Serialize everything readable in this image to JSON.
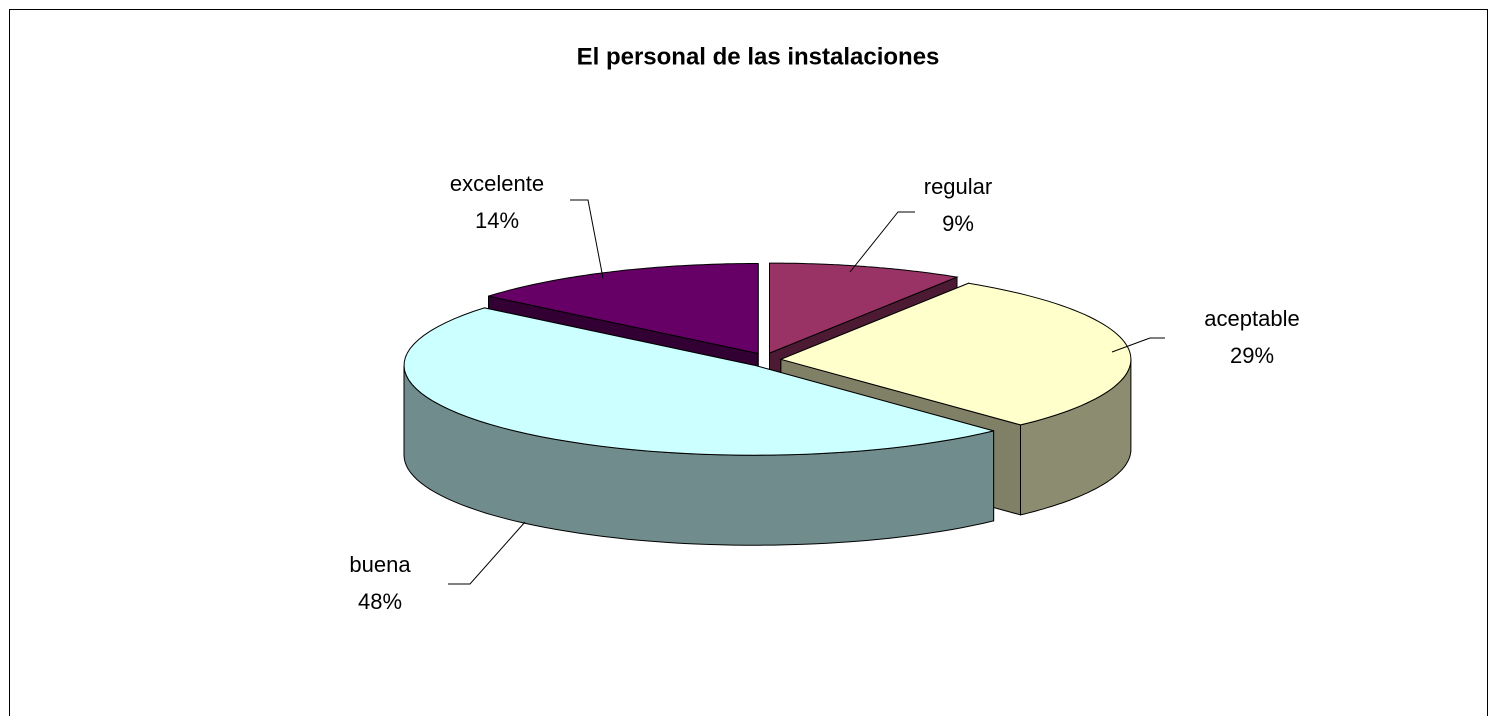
{
  "chart_data": {
    "type": "pie",
    "title": "El personal de las instalaciones",
    "categories": [
      "regular",
      "aceptable",
      "buena",
      "excelente"
    ],
    "values": [
      9,
      29,
      48,
      14
    ],
    "value_labels": [
      "9%",
      "29%",
      "48%",
      "14%"
    ],
    "colors": [
      "#993366",
      "#ffffcc",
      "#ccffff",
      "#660066"
    ]
  }
}
